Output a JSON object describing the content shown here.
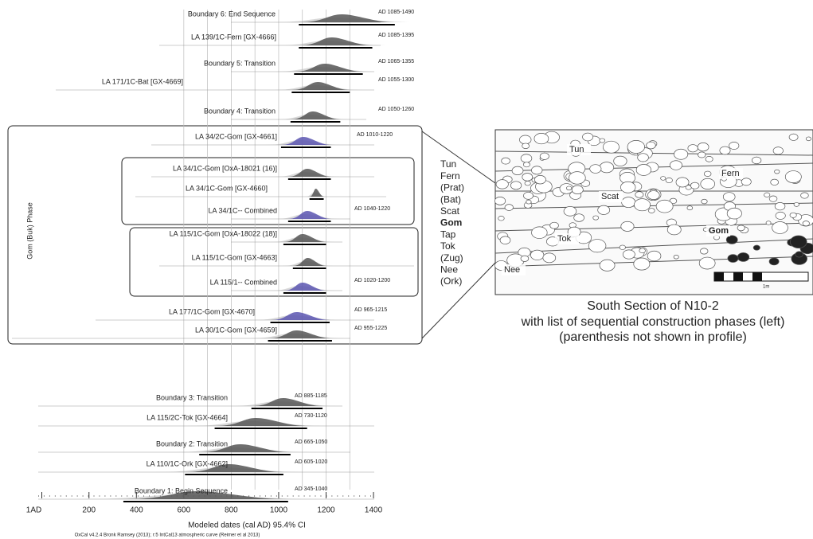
{
  "chart_data": {
    "type": "range",
    "xlabel": "Modeled dates (cal AD) 95.4% CI",
    "note": "OxCal v4.2.4 Bronk Ramsey (2013); r:5 IntCal13 atmospheric curve (Reimer et al 2013)",
    "xlim": [
      1,
      1420
    ],
    "xticks": [
      {
        "value": 1,
        "label": "1AD"
      },
      200,
      400,
      600,
      800,
      1000,
      1200,
      1400
    ],
    "xgrid": [
      600,
      700,
      800,
      900,
      1000,
      1100,
      1200,
      1300
    ],
    "phase_label": "Gom (Buk) Phase",
    "series": [
      {
        "name": "Boundary 6: End Sequence",
        "values": [
          1085,
          1490
        ],
        "range_label": "AD 1085-1490",
        "color": "#555555"
      },
      {
        "name": "LA 139/1C-Fern [GX-4666]",
        "values": [
          1085,
          1395
        ],
        "range_label": "AD 1085-1395",
        "color": "#555555"
      },
      {
        "name": "Boundary 5: Transition",
        "values": [
          1065,
          1355
        ],
        "range_label": "AD 1065-1355",
        "color": "#555555"
      },
      {
        "name": "LA 171/1C-Bat [GX-4669]",
        "values": [
          1055,
          1300
        ],
        "range_label": "AD 1055-1300",
        "color": "#555555"
      },
      {
        "name": "Boundary 4: Transition",
        "values": [
          1050,
          1260
        ],
        "range_label": "AD 1050-1260",
        "color": "#555555"
      },
      {
        "name": "LA 34/2C-Gom [GX-4661]",
        "values": [
          1010,
          1220
        ],
        "range_label": "AD 1010-1220",
        "color": "#5b55b0"
      },
      {
        "name": "LA 34/1C-Gom [OxA-18021 (16)]",
        "values": [
          1040,
          1220
        ],
        "color": "#555555"
      },
      {
        "name": "LA 34/1C-Gom [GX-4660]",
        "values": [
          1130,
          1190
        ],
        "color": "#555555"
      },
      {
        "name": "LA 34/1C-- Combined",
        "values": [
          1040,
          1220
        ],
        "range_label": "AD 1040-1220",
        "color": "#5b55b0"
      },
      {
        "name": "LA 115/1C-Gom [OxA-18022 (18)]",
        "values": [
          1020,
          1200
        ],
        "color": "#555555"
      },
      {
        "name": "LA 115/1C-Gom [GX-4663]",
        "values": [
          1060,
          1200
        ],
        "color": "#555555"
      },
      {
        "name": "LA 115/1-- Combined",
        "values": [
          1020,
          1200
        ],
        "range_label": "AD 1020-1200",
        "color": "#5b55b0"
      },
      {
        "name": "LA 177/1C-Gom [GX-4670]",
        "values": [
          965,
          1215
        ],
        "range_label": "AD 965-1215",
        "color": "#5b55b0"
      },
      {
        "name": "LA 30/1C-Gom [GX-4659]",
        "values": [
          955,
          1225
        ],
        "range_label": "AD 955-1225",
        "color": "#555555"
      },
      {
        "name": "Boundary 3: Transition",
        "values": [
          885,
          1185
        ],
        "range_label": "AD 885-1185",
        "color": "#555555"
      },
      {
        "name": "LA 115/2C-Tok [GX-4664]",
        "values": [
          730,
          1120
        ],
        "range_label": "AD 730-1120",
        "color": "#555555"
      },
      {
        "name": "Boundary 2: Transition",
        "values": [
          665,
          1050
        ],
        "range_label": "AD 665-1050",
        "color": "#555555"
      },
      {
        "name": "LA 110/1C-Ork [GX-4662]",
        "values": [
          605,
          1020
        ],
        "range_label": "AD 605-1020",
        "color": "#555555"
      },
      {
        "name": "Boundary 1: Begin Sequence",
        "values": [
          345,
          1040
        ],
        "range_label": "AD 345-1040",
        "color": "#555555"
      }
    ]
  },
  "phases": [
    "Tun",
    "Fern",
    "(Prat)",
    "(Bat)",
    "Scat",
    "Gom",
    "Tap",
    "Tok",
    "(Zug)",
    "Nee",
    "(Ork)"
  ],
  "section": {
    "labels": [
      "Tun",
      "Fern",
      "Scat",
      "Gom",
      "Tok",
      "Nee"
    ],
    "scale": "1m"
  },
  "caption": [
    "South Section of N10-2",
    "with list of sequential construction phases (left)",
    "(parenthesis not shown in profile)"
  ]
}
